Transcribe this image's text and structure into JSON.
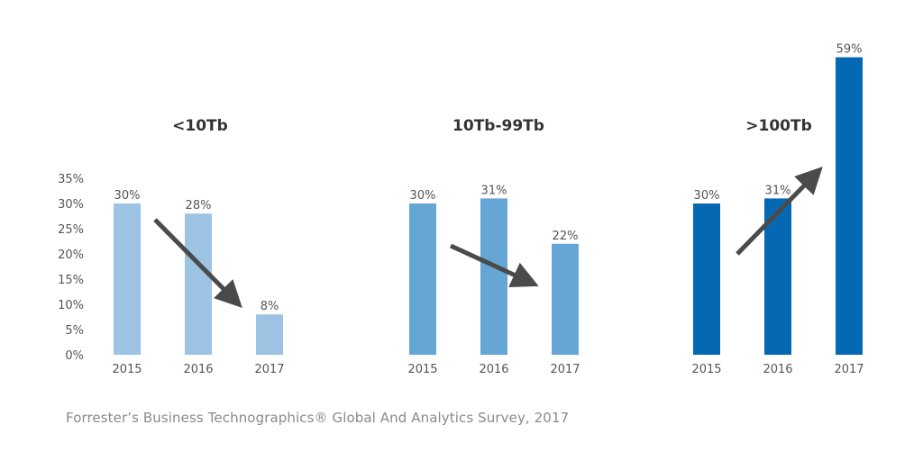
{
  "chart_data": [
    {
      "type": "bar",
      "title": "<10Tb",
      "categories": [
        "2015",
        "2016",
        "2017"
      ],
      "values": [
        30,
        28,
        8
      ],
      "value_labels": [
        "30%",
        "28%",
        "8%"
      ],
      "ylim": [
        0,
        35
      ],
      "yticks": [
        "0%",
        "5%",
        "10%",
        "15%",
        "20%",
        "25%",
        "30%",
        "35%"
      ],
      "color": "#9cc3e4",
      "trend": "down"
    },
    {
      "type": "bar",
      "title": "10Tb-99Tb",
      "categories": [
        "2015",
        "2016",
        "2017"
      ],
      "values": [
        30,
        31,
        22
      ],
      "value_labels": [
        "30%",
        "31%",
        "22%"
      ],
      "ylim": [
        0,
        35
      ],
      "color": "#66a6d4",
      "trend": "down"
    },
    {
      "type": "bar",
      "title": ">100Tb",
      "categories": [
        "2015",
        "2016",
        "2017"
      ],
      "values": [
        30,
        31,
        59
      ],
      "value_labels": [
        "30%",
        "31%",
        "59%"
      ],
      "ylim": [
        0,
        35
      ],
      "color": "#0568b3",
      "trend": "up"
    }
  ],
  "source": "Forrester’s Business Technographics® Global And Analytics Survey, 2017",
  "colors": {
    "arrow": "#4a4a4a",
    "text": "#555555",
    "title": "#333333"
  }
}
